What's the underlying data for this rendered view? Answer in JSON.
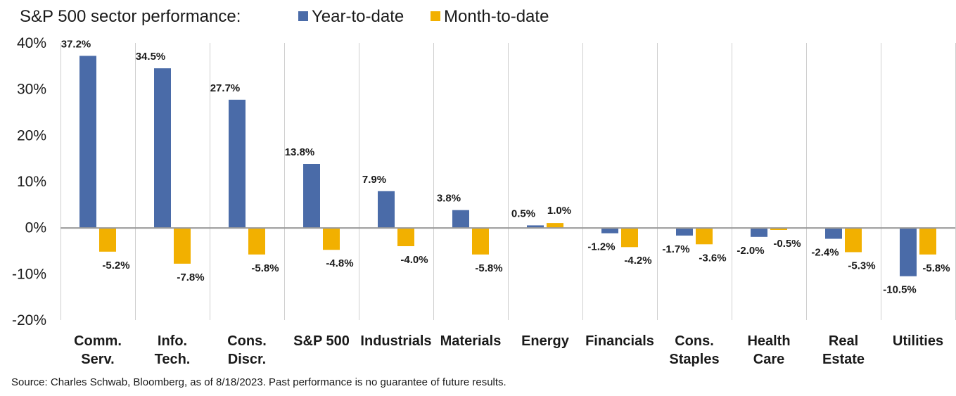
{
  "chart_data": {
    "type": "bar",
    "title": "S&P 500 sector performance:",
    "categories": [
      [
        "Comm.",
        "Serv."
      ],
      [
        "Info.",
        "Tech."
      ],
      [
        "Cons.",
        "Discr."
      ],
      [
        "S&P 500"
      ],
      [
        "Industrials"
      ],
      [
        "Materials"
      ],
      [
        "Energy"
      ],
      [
        "Financials"
      ],
      [
        "Cons.",
        "Staples"
      ],
      [
        "Health",
        "Care"
      ],
      [
        "Real",
        "Estate"
      ],
      [
        "Utilities"
      ]
    ],
    "series": [
      {
        "name": "Year-to-date",
        "color": "#4a6ba8",
        "values": [
          37.2,
          34.5,
          27.7,
          13.8,
          7.9,
          3.8,
          0.5,
          -1.2,
          -1.7,
          -2.0,
          -2.4,
          -10.5
        ],
        "labels": [
          "37.2%",
          "34.5%",
          "27.7%",
          "13.8%",
          "7.9%",
          "3.8%",
          "0.5%",
          "-1.2%",
          "-1.7%",
          "-2.0%",
          "-2.4%",
          "-10.5%"
        ]
      },
      {
        "name": "Month-to-date",
        "color": "#f2b000",
        "values": [
          -5.2,
          -7.8,
          -5.8,
          -4.8,
          -4.0,
          -5.8,
          1.0,
          -4.2,
          -3.6,
          -0.5,
          -5.3,
          -5.8
        ],
        "labels": [
          "-5.2%",
          "-7.8%",
          "-5.8%",
          "-4.8%",
          "-4.0%",
          "-5.8%",
          "1.0%",
          "-4.2%",
          "-3.6%",
          "-0.5%",
          "-5.3%",
          "-5.8%"
        ]
      }
    ],
    "ylim": [
      -20,
      40
    ],
    "yticks": [
      -20,
      -10,
      0,
      10,
      20,
      30,
      40
    ],
    "ytick_labels": [
      "-20%",
      "-10%",
      "0%",
      "10%",
      "20%",
      "30%",
      "40%"
    ],
    "xlabel": "",
    "ylabel": "",
    "grid": "vertical-separators",
    "legend_position": "top"
  },
  "source_note": "Source: Charles Schwab, Bloomberg, as of 8/18/2023.  Past performance is no guarantee of future results."
}
